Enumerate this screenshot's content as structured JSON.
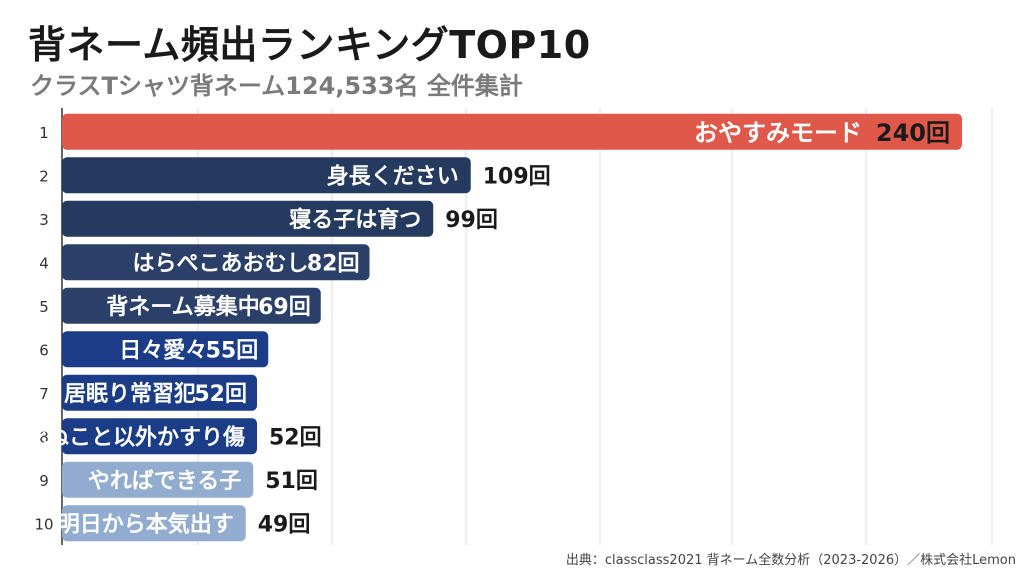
{
  "title": "背ネーム頻出ランキングTOP10",
  "subtitle": "クラスTシャツ背ネーム124,533名 全件集計",
  "source": "出典：classclass2021 背ネーム全数分析（2023-2026）／株式会社Lemon",
  "chart_data": {
    "type": "bar",
    "orientation": "horizontal",
    "unit": "回",
    "xlim": [
      0,
      240
    ],
    "grid": true,
    "ranks": [
      "1",
      "2",
      "3",
      "4",
      "5",
      "6",
      "7",
      "8",
      "9",
      "10"
    ],
    "categories": [
      "おやすみモード",
      "身長ください",
      "寝る子は育つ",
      "はらぺこあおむし",
      "背ネーム募集中",
      "日々愛々",
      "居眠り常習犯",
      "死ぬこと以外かすり傷",
      "やればできる子",
      "明日から本気出す"
    ],
    "values": [
      240,
      109,
      99,
      82,
      69,
      55,
      52,
      52,
      51,
      49
    ],
    "value_labels": [
      "240回",
      "109回",
      "99回",
      "82回",
      "69回",
      "55回",
      "52回",
      "52回",
      "51回",
      "49回"
    ],
    "colors": [
      "#e0584a",
      "#243a5e",
      "#243a5e",
      "#2b4068",
      "#2b4068",
      "#1b3c86",
      "#1b3c86",
      "#1b3c86",
      "#92acd0",
      "#92acd0"
    ]
  }
}
